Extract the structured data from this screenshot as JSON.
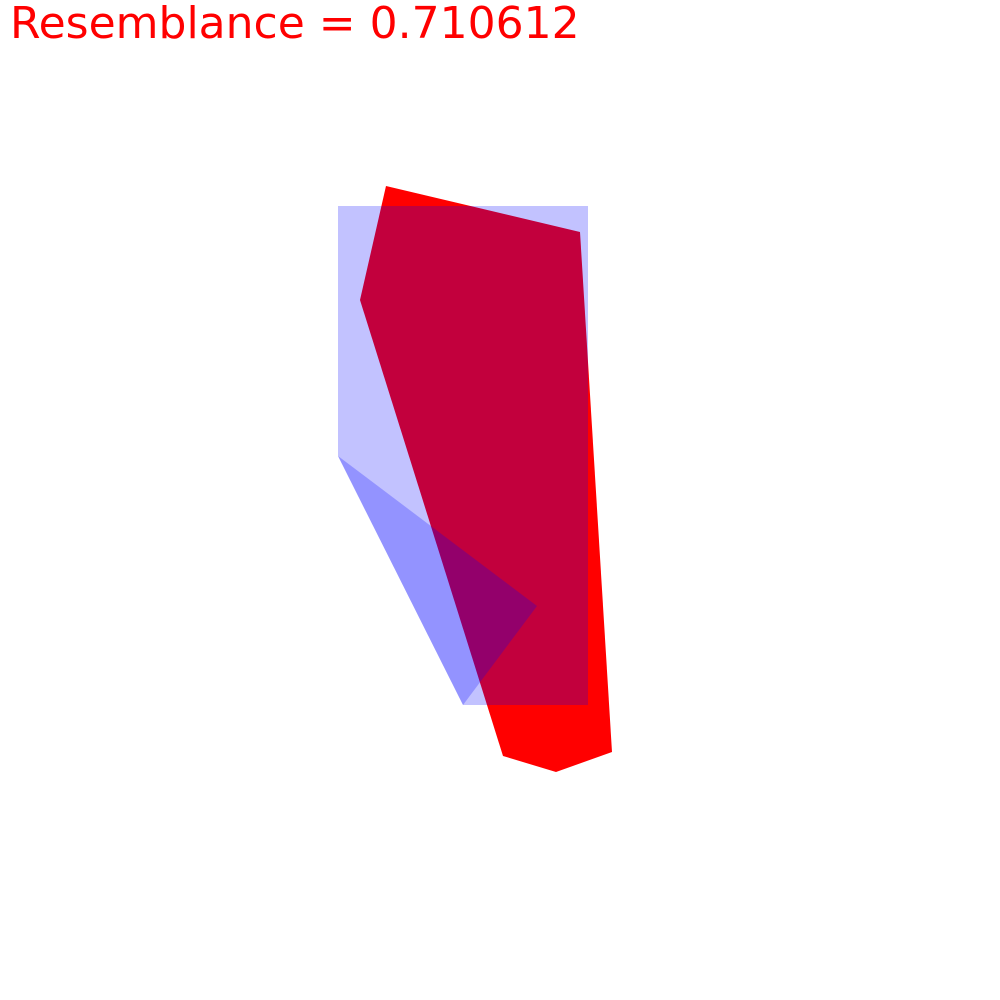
{
  "header": {
    "label": "Resemblance = 0.710612"
  },
  "colors": {
    "label": "#ff0000",
    "red_shape": "#ff0000",
    "blue_shape": "#0000ff"
  }
}
